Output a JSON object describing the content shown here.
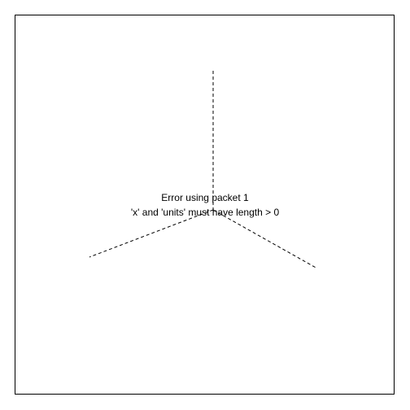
{
  "error": {
    "line1": "Error using packet 1",
    "line2": "'x' and 'units' must have length > 0"
  },
  "colors": {
    "background": "#ffffff",
    "border": "#000000",
    "axis_lines": "#000000",
    "text": "#000000"
  }
}
